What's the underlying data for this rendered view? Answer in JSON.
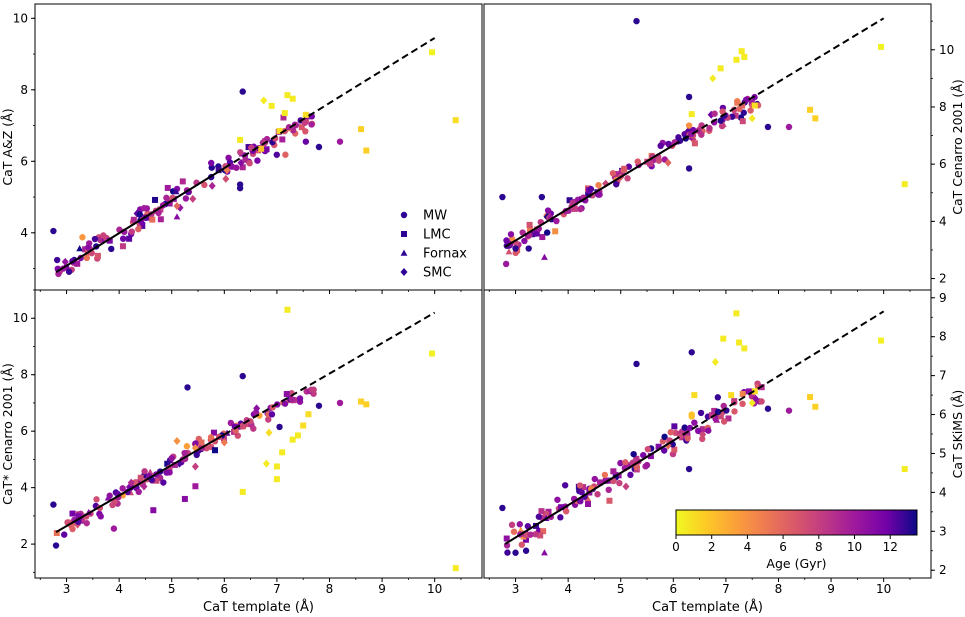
{
  "chart_data": [
    {
      "type": "scatter",
      "panel": "top-left",
      "xlabel": "",
      "ylabel": "CaT A&Z (Å)",
      "xlim": [
        2.4,
        10.9
      ],
      "ylim": [
        2.4,
        10.4
      ],
      "xticks": [
        "3",
        "4",
        "5",
        "6",
        "7",
        "8",
        "9",
        "10"
      ],
      "yticks": [
        {
          "v": 4,
          "label": "4"
        },
        {
          "v": 6,
          "label": "6"
        },
        {
          "v": 8,
          "label": "8"
        },
        {
          "v": 10,
          "label": "10"
        }
      ],
      "yaxis_side": "left",
      "fit_line": {
        "slope": 0.91,
        "intercept": 0.35,
        "solid_to": 6.0,
        "end": 10.0
      },
      "legend": {
        "position": "lower-right",
        "entries": [
          {
            "label": "MW",
            "marker": "circle"
          },
          {
            "label": "LMC",
            "marker": "square"
          },
          {
            "label": "Fornax",
            "marker": "triangle"
          },
          {
            "label": "SMC",
            "marker": "diamond"
          }
        ]
      },
      "outliers": [
        {
          "x": 2.75,
          "y": 4.05,
          "age": 13,
          "m": "circle"
        },
        {
          "x": 6.35,
          "y": 7.95,
          "age": 13,
          "m": "circle"
        },
        {
          "x": 6.3,
          "y": 6.6,
          "age": 0.5,
          "m": "square"
        },
        {
          "x": 6.75,
          "y": 7.7,
          "age": 0.5,
          "m": "diamond"
        },
        {
          "x": 6.9,
          "y": 7.55,
          "age": 0.5,
          "m": "square"
        },
        {
          "x": 7.2,
          "y": 7.85,
          "age": 0.5,
          "m": "square"
        },
        {
          "x": 7.3,
          "y": 7.75,
          "age": 0.5,
          "m": "square"
        },
        {
          "x": 7.15,
          "y": 7.35,
          "age": 0.5,
          "m": "square"
        },
        {
          "x": 7.55,
          "y": 7.3,
          "age": 1,
          "m": "square"
        },
        {
          "x": 7.05,
          "y": 6.85,
          "age": 1,
          "m": "square"
        },
        {
          "x": 6.7,
          "y": 6.35,
          "age": 2,
          "m": "square"
        },
        {
          "x": 8.2,
          "y": 6.55,
          "age": 10,
          "m": "circle"
        },
        {
          "x": 8.6,
          "y": 6.9,
          "age": 1.5,
          "m": "square"
        },
        {
          "x": 8.7,
          "y": 6.3,
          "age": 1.5,
          "m": "square"
        },
        {
          "x": 9.95,
          "y": 9.05,
          "age": 0.3,
          "m": "square"
        },
        {
          "x": 10.4,
          "y": 7.15,
          "age": 1,
          "m": "square"
        },
        {
          "x": 6.3,
          "y": 5.25,
          "age": 13,
          "m": "circle"
        },
        {
          "x": 6.3,
          "y": 5.35,
          "age": 13,
          "m": "circle"
        },
        {
          "x": 5.1,
          "y": 4.45,
          "age": 11,
          "m": "triangle"
        },
        {
          "x": 5.4,
          "y": 4.95,
          "age": 8,
          "m": "diamond"
        },
        {
          "x": 5.1,
          "y": 4.75,
          "age": 6,
          "m": "diamond"
        },
        {
          "x": 7.8,
          "y": 6.4,
          "age": 13,
          "m": "circle"
        },
        {
          "x": 7.55,
          "y": 6.55,
          "age": 12,
          "m": "circle"
        },
        {
          "x": 6.05,
          "y": 5.75,
          "age": 5,
          "m": "diamond"
        },
        {
          "x": 3.85,
          "y": 3.55,
          "age": 13,
          "m": "circle"
        }
      ]
    },
    {
      "type": "scatter",
      "panel": "top-right",
      "xlabel": "",
      "ylabel": "CaT Cenarro 2001 (Å)",
      "xlim": [
        2.4,
        10.9
      ],
      "ylim": [
        1.6,
        11.6
      ],
      "xticks": [
        "3",
        "4",
        "5",
        "6",
        "7",
        "8",
        "9",
        "10"
      ],
      "yticks": [
        {
          "v": 2,
          "label": "2"
        },
        {
          "v": 4,
          "label": "4"
        },
        {
          "v": 6,
          "label": "6"
        },
        {
          "v": 8,
          "label": "8"
        },
        {
          "v": 10,
          "label": "10"
        }
      ],
      "yaxis_side": "right",
      "fit_line": {
        "slope": 1.11,
        "intercept": 0.0,
        "solid_to": 6.0,
        "end": 10.0
      },
      "outliers": [
        {
          "x": 5.3,
          "y": 11.0,
          "age": 13,
          "m": "circle"
        },
        {
          "x": 2.75,
          "y": 4.85,
          "age": 13,
          "m": "circle"
        },
        {
          "x": 3.5,
          "y": 4.85,
          "age": 13,
          "m": "circle"
        },
        {
          "x": 6.3,
          "y": 8.35,
          "age": 13,
          "m": "circle"
        },
        {
          "x": 6.35,
          "y": 7.75,
          "age": 0.5,
          "m": "square"
        },
        {
          "x": 6.75,
          "y": 9.0,
          "age": 0.5,
          "m": "diamond"
        },
        {
          "x": 6.9,
          "y": 9.35,
          "age": 0.5,
          "m": "square"
        },
        {
          "x": 7.2,
          "y": 9.65,
          "age": 0.5,
          "m": "square"
        },
        {
          "x": 7.3,
          "y": 9.95,
          "age": 0.5,
          "m": "square"
        },
        {
          "x": 7.35,
          "y": 9.75,
          "age": 0.5,
          "m": "square"
        },
        {
          "x": 7.55,
          "y": 8.05,
          "age": 1,
          "m": "square"
        },
        {
          "x": 7.5,
          "y": 7.6,
          "age": 0.5,
          "m": "diamond"
        },
        {
          "x": 8.2,
          "y": 7.3,
          "age": 10,
          "m": "circle"
        },
        {
          "x": 8.6,
          "y": 7.9,
          "age": 1.5,
          "m": "square"
        },
        {
          "x": 8.7,
          "y": 7.6,
          "age": 1.5,
          "m": "square"
        },
        {
          "x": 9.95,
          "y": 10.1,
          "age": 0.3,
          "m": "square"
        },
        {
          "x": 10.4,
          "y": 5.3,
          "age": 0.5,
          "m": "square"
        },
        {
          "x": 6.3,
          "y": 5.85,
          "age": 13,
          "m": "circle"
        },
        {
          "x": 3.0,
          "y": 3.05,
          "age": 13,
          "m": "circle"
        },
        {
          "x": 3.25,
          "y": 3.05,
          "age": 13,
          "m": "circle"
        },
        {
          "x": 3.55,
          "y": 2.75,
          "age": 11,
          "m": "triangle"
        },
        {
          "x": 5.9,
          "y": 6.05,
          "age": 6,
          "m": "diamond"
        },
        {
          "x": 5.0,
          "y": 5.55,
          "age": 7,
          "m": "diamond"
        },
        {
          "x": 6.3,
          "y": 7.35,
          "age": 4,
          "m": "circle"
        },
        {
          "x": 7.8,
          "y": 7.3,
          "age": 13,
          "m": "circle"
        }
      ]
    },
    {
      "type": "scatter",
      "panel": "bottom-left",
      "xlabel": "CaT template (Å)",
      "ylabel": "CaT* Cenarro 2001 (Å)",
      "xlim": [
        2.4,
        10.9
      ],
      "ylim": [
        0.8,
        11.0
      ],
      "xticks": [
        "3",
        "4",
        "5",
        "6",
        "7",
        "8",
        "9",
        "10"
      ],
      "yticks": [
        {
          "v": 2,
          "label": "2"
        },
        {
          "v": 4,
          "label": "4"
        },
        {
          "v": 6,
          "label": "6"
        },
        {
          "v": 8,
          "label": "8"
        },
        {
          "v": 10,
          "label": "10"
        }
      ],
      "yaxis_side": "left",
      "fit_line": {
        "slope": 1.08,
        "intercept": -0.6,
        "solid_to": 6.0,
        "end": 10.0
      },
      "outliers": [
        {
          "x": 2.75,
          "y": 3.4,
          "age": 13,
          "m": "circle"
        },
        {
          "x": 2.8,
          "y": 1.95,
          "age": 13,
          "m": "circle"
        },
        {
          "x": 5.3,
          "y": 7.55,
          "age": 13,
          "m": "circle"
        },
        {
          "x": 6.35,
          "y": 7.95,
          "age": 13,
          "m": "circle"
        },
        {
          "x": 7.2,
          "y": 10.3,
          "age": 0.5,
          "m": "square"
        },
        {
          "x": 9.95,
          "y": 8.75,
          "age": 0.3,
          "m": "square"
        },
        {
          "x": 10.4,
          "y": 1.15,
          "age": 0.5,
          "m": "square"
        },
        {
          "x": 6.35,
          "y": 3.85,
          "age": 0.5,
          "m": "square"
        },
        {
          "x": 6.8,
          "y": 4.85,
          "age": 0.5,
          "m": "diamond"
        },
        {
          "x": 7.0,
          "y": 4.75,
          "age": 0.5,
          "m": "square"
        },
        {
          "x": 7.0,
          "y": 4.3,
          "age": 0.5,
          "m": "square"
        },
        {
          "x": 7.1,
          "y": 5.25,
          "age": 0.5,
          "m": "square"
        },
        {
          "x": 7.3,
          "y": 5.7,
          "age": 0.5,
          "m": "square"
        },
        {
          "x": 7.4,
          "y": 5.85,
          "age": 0.5,
          "m": "square"
        },
        {
          "x": 7.5,
          "y": 6.2,
          "age": 1,
          "m": "square"
        },
        {
          "x": 7.6,
          "y": 6.6,
          "age": 1,
          "m": "square"
        },
        {
          "x": 6.85,
          "y": 5.95,
          "age": 1,
          "m": "diamond"
        },
        {
          "x": 8.2,
          "y": 7.0,
          "age": 10,
          "m": "circle"
        },
        {
          "x": 8.6,
          "y": 7.05,
          "age": 1.5,
          "m": "square"
        },
        {
          "x": 8.7,
          "y": 6.95,
          "age": 1.5,
          "m": "square"
        },
        {
          "x": 4.65,
          "y": 3.2,
          "age": 11,
          "m": "square"
        },
        {
          "x": 5.25,
          "y": 3.6,
          "age": 11,
          "m": "square"
        },
        {
          "x": 5.45,
          "y": 4.05,
          "age": 10,
          "m": "square"
        },
        {
          "x": 5.1,
          "y": 5.65,
          "age": 4,
          "m": "diamond"
        },
        {
          "x": 5.45,
          "y": 5.4,
          "age": 4,
          "m": "diamond"
        },
        {
          "x": 5.45,
          "y": 4.75,
          "age": 8,
          "m": "diamond"
        },
        {
          "x": 6.0,
          "y": 5.6,
          "age": 5,
          "m": "diamond"
        },
        {
          "x": 3.9,
          "y": 2.55,
          "age": 10,
          "m": "circle"
        },
        {
          "x": 7.8,
          "y": 6.9,
          "age": 13,
          "m": "circle"
        },
        {
          "x": 7.05,
          "y": 6.15,
          "age": 13,
          "m": "circle"
        }
      ]
    },
    {
      "type": "scatter",
      "panel": "bottom-right",
      "xlabel": "CaT template (Å)",
      "ylabel": "CaT SKiMS (Å)",
      "xlim": [
        2.4,
        10.9
      ],
      "ylim": [
        1.8,
        9.2
      ],
      "xticks": [
        "3",
        "4",
        "5",
        "6",
        "7",
        "8",
        "9",
        "10"
      ],
      "yticks": [
        {
          "v": 2,
          "label": "2"
        },
        {
          "v": 3,
          "label": "3"
        },
        {
          "v": 4,
          "label": "4"
        },
        {
          "v": 5,
          "label": "5"
        },
        {
          "v": 6,
          "label": "6"
        },
        {
          "v": 7,
          "label": "7"
        },
        {
          "v": 8,
          "label": "8"
        },
        {
          "v": 9,
          "label": "9"
        }
      ],
      "yaxis_side": "right",
      "fit_line": {
        "slope": 0.83,
        "intercept": 0.35,
        "solid_to": 6.0,
        "end": 10.0
      },
      "colorbar": {
        "label": "Age (Gyr)",
        "ticks": [
          "0",
          "2",
          "4",
          "6",
          "8",
          "10",
          "12"
        ],
        "min": 0,
        "max": 13.5,
        "position": "lower-right"
      },
      "outliers": [
        {
          "x": 2.75,
          "y": 3.6,
          "age": 13,
          "m": "circle"
        },
        {
          "x": 5.3,
          "y": 7.3,
          "age": 13,
          "m": "circle"
        },
        {
          "x": 6.35,
          "y": 7.6,
          "age": 13,
          "m": "circle"
        },
        {
          "x": 7.2,
          "y": 8.6,
          "age": 0.5,
          "m": "square"
        },
        {
          "x": 6.95,
          "y": 7.95,
          "age": 0.5,
          "m": "square"
        },
        {
          "x": 7.25,
          "y": 7.85,
          "age": 0.5,
          "m": "square"
        },
        {
          "x": 7.35,
          "y": 7.7,
          "age": 0.5,
          "m": "square"
        },
        {
          "x": 6.8,
          "y": 7.35,
          "age": 0.5,
          "m": "diamond"
        },
        {
          "x": 6.4,
          "y": 6.5,
          "age": 1,
          "m": "square"
        },
        {
          "x": 7.1,
          "y": 6.5,
          "age": 1,
          "m": "square"
        },
        {
          "x": 7.55,
          "y": 6.6,
          "age": 1,
          "m": "square"
        },
        {
          "x": 7.5,
          "y": 6.3,
          "age": 0.5,
          "m": "diamond"
        },
        {
          "x": 9.95,
          "y": 7.9,
          "age": 0.3,
          "m": "square"
        },
        {
          "x": 10.4,
          "y": 4.6,
          "age": 0.5,
          "m": "square"
        },
        {
          "x": 8.6,
          "y": 6.45,
          "age": 1.5,
          "m": "square"
        },
        {
          "x": 8.7,
          "y": 6.2,
          "age": 1.5,
          "m": "square"
        },
        {
          "x": 8.2,
          "y": 6.1,
          "age": 10,
          "m": "circle"
        },
        {
          "x": 6.35,
          "y": 6.0,
          "age": 2,
          "m": "circle"
        },
        {
          "x": 6.35,
          "y": 5.95,
          "age": 2,
          "m": "circle"
        },
        {
          "x": 3.0,
          "y": 2.45,
          "age": 13,
          "m": "circle"
        },
        {
          "x": 3.2,
          "y": 2.5,
          "age": 13,
          "m": "circle"
        },
        {
          "x": 3.55,
          "y": 2.45,
          "age": 11,
          "m": "triangle"
        },
        {
          "x": 5.1,
          "y": 4.15,
          "age": 8,
          "m": "diamond"
        },
        {
          "x": 5.9,
          "y": 5.2,
          "age": 6,
          "m": "diamond"
        },
        {
          "x": 5.5,
          "y": 4.7,
          "age": 10,
          "m": "circle"
        },
        {
          "x": 6.3,
          "y": 4.6,
          "age": 13,
          "m": "circle"
        },
        {
          "x": 7.8,
          "y": 6.15,
          "age": 13,
          "m": "circle"
        }
      ]
    }
  ]
}
